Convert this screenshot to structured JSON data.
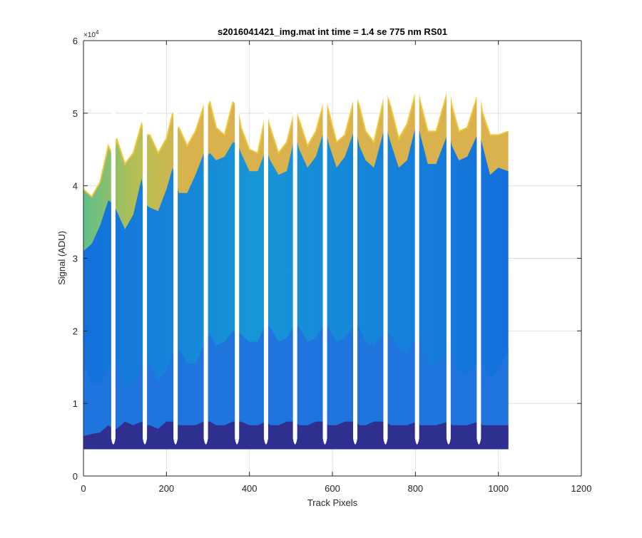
{
  "chart_data": {
    "type": "area",
    "title": "s2016041421_img.mat int time = 1.4 se  775 nm RS01",
    "xlabel": "Track Pixels",
    "ylabel": "Signal (ADU)",
    "xlim": [
      0,
      1200
    ],
    "ylim": [
      0,
      60000
    ],
    "xticks": [
      0,
      200,
      400,
      600,
      800,
      1000,
      1200
    ],
    "yticks": [
      0,
      1,
      2,
      3,
      4,
      5,
      6
    ],
    "y_multiplier": "×10",
    "y_multiplier_exponent": "4",
    "grid": true,
    "legend": "none",
    "baseline": 3700,
    "gaps_at": [
      72,
      148,
      222,
      295,
      370,
      440,
      510,
      582,
      655,
      728,
      804,
      880,
      953
    ],
    "data_x_range": [
      0,
      1024
    ],
    "colors": {
      "bottom_band": "#2f2f8f",
      "middle_band": "#1f75dd",
      "upper_band": "#1796d6",
      "top_edge": "#f2c83a",
      "top_mid": "#d9b24d",
      "left_green": "#5fbf8a"
    },
    "series": [
      {
        "x": [
          0,
          20,
          40,
          60,
          72,
          80,
          100,
          120,
          140,
          148,
          160,
          180,
          200,
          215,
          222,
          230,
          250,
          270,
          290,
          295,
          305,
          320,
          340,
          360,
          370,
          380,
          400,
          420,
          440,
          450,
          470,
          490,
          510,
          520,
          540,
          560,
          582,
          590,
          610,
          630,
          655,
          665,
          680,
          700,
          728,
          740,
          760,
          780,
          804,
          812,
          830,
          850,
          880,
          888,
          905,
          925,
          953,
          962,
          980,
          1000,
          1024
        ],
        "values": [
          5500,
          5800,
          6000,
          7000,
          6500,
          6500,
          7500,
          7000,
          7500,
          7000,
          7000,
          6500,
          7500,
          7500,
          7000,
          7000,
          7000,
          7000,
          7500,
          7500,
          7500,
          7000,
          7000,
          7500,
          7500,
          7500,
          7000,
          7000,
          7500,
          7000,
          7000,
          7500,
          7500,
          7000,
          7000,
          7500,
          7500,
          7000,
          7000,
          7500,
          7500,
          7000,
          7000,
          7500,
          7500,
          7000,
          7000,
          7000,
          7500,
          7000,
          7000,
          7000,
          7500,
          7000,
          7000,
          7000,
          7500,
          7000,
          7000,
          7000,
          7000
        ]
      },
      {
        "x": [
          0,
          20,
          40,
          60,
          72,
          80,
          100,
          120,
          140,
          148,
          160,
          180,
          200,
          215,
          222,
          230,
          250,
          270,
          290,
          295,
          305,
          320,
          340,
          360,
          370,
          380,
          400,
          420,
          440,
          450,
          470,
          490,
          510,
          520,
          540,
          560,
          582,
          590,
          610,
          630,
          655,
          665,
          680,
          700,
          728,
          740,
          760,
          780,
          804,
          812,
          830,
          850,
          880,
          888,
          905,
          925,
          953,
          962,
          980,
          1000,
          1024
        ],
        "values": [
          15500,
          13000,
          12500,
          15000,
          14000,
          16000,
          12500,
          12500,
          16000,
          15000,
          15500,
          13000,
          14500,
          17000,
          16500,
          17500,
          15500,
          15500,
          18000,
          18500,
          19500,
          18000,
          18500,
          20000,
          20000,
          19500,
          18500,
          18500,
          21000,
          20500,
          18500,
          19000,
          21000,
          20500,
          18500,
          19000,
          21000,
          20500,
          18500,
          19000,
          21000,
          20500,
          18500,
          18000,
          20000,
          19500,
          17500,
          17000,
          19500,
          19000,
          15000,
          15000,
          17000,
          17000,
          14000,
          14000,
          15500,
          15500,
          13500,
          14500,
          17500
        ]
      },
      {
        "x": [
          0,
          20,
          40,
          60,
          72,
          80,
          100,
          120,
          140,
          148,
          160,
          180,
          200,
          215,
          222,
          230,
          250,
          270,
          290,
          295,
          305,
          320,
          340,
          360,
          370,
          380,
          400,
          420,
          440,
          450,
          470,
          490,
          510,
          520,
          540,
          560,
          582,
          590,
          610,
          630,
          655,
          665,
          680,
          700,
          728,
          740,
          760,
          780,
          804,
          812,
          830,
          850,
          880,
          888,
          905,
          925,
          953,
          962,
          980,
          1000,
          1024
        ],
        "values": [
          31000,
          32000,
          34500,
          38000,
          37500,
          36500,
          34000,
          36000,
          41000,
          37500,
          37000,
          36500,
          39500,
          42500,
          40500,
          39000,
          39000,
          41500,
          44500,
          44000,
          44500,
          43500,
          44000,
          46000,
          46000,
          44500,
          42000,
          42000,
          45000,
          43500,
          41500,
          42000,
          47000,
          45000,
          42500,
          44000,
          48000,
          46000,
          42500,
          44000,
          48000,
          45500,
          43500,
          42500,
          48500,
          46000,
          42500,
          43500,
          49000,
          47000,
          43000,
          43000,
          47500,
          45500,
          43500,
          44000,
          47500,
          45500,
          41500,
          42500,
          42000
        ]
      },
      {
        "x": [
          0,
          20,
          40,
          60,
          72,
          80,
          100,
          120,
          140,
          148,
          160,
          180,
          200,
          215,
          222,
          230,
          250,
          270,
          290,
          295,
          305,
          320,
          340,
          360,
          370,
          380,
          400,
          420,
          440,
          450,
          470,
          490,
          510,
          520,
          540,
          560,
          582,
          590,
          610,
          630,
          655,
          665,
          680,
          700,
          728,
          740,
          760,
          780,
          804,
          812,
          830,
          850,
          880,
          888,
          905,
          925,
          953,
          962,
          980,
          1000,
          1024
        ],
        "values": [
          39500,
          38500,
          40500,
          45500,
          44000,
          46500,
          43000,
          44500,
          48500,
          47000,
          47000,
          44500,
          46500,
          50000,
          48000,
          48000,
          45500,
          47500,
          51000,
          50500,
          51500,
          48000,
          47000,
          51500,
          51000,
          48000,
          45000,
          44500,
          50000,
          48000,
          44500,
          46000,
          50500,
          49000,
          45500,
          47500,
          52000,
          50500,
          46000,
          47000,
          52500,
          51000,
          47500,
          46000,
          53000,
          51000,
          46500,
          48500,
          53500,
          51500,
          47500,
          47500,
          53500,
          51000,
          47500,
          48000,
          53000,
          50000,
          47000,
          47000,
          47500
        ]
      }
    ]
  }
}
